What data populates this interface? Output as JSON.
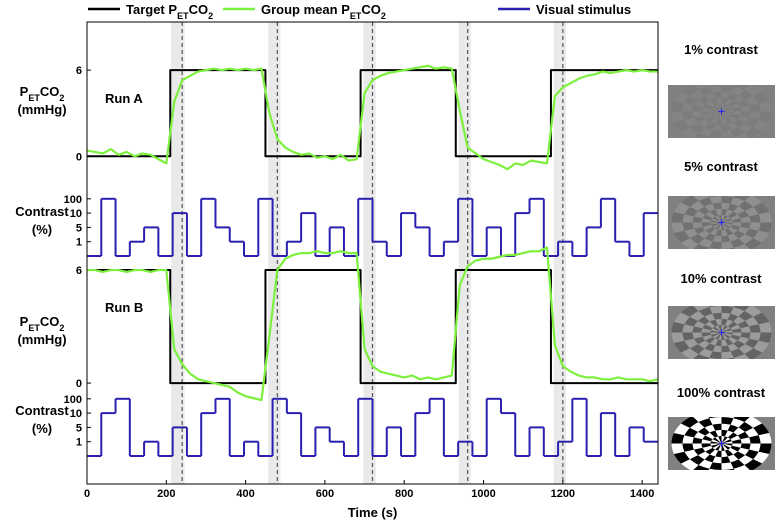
{
  "chart_data": [
    {
      "type": "line",
      "annotation": "Run A",
      "ylabel": [
        "PETCO2",
        "(mmHg)"
      ],
      "xlim": [
        0,
        1440
      ],
      "ylim": [
        -2,
        9.35
      ],
      "yticks": [
        0,
        6
      ],
      "series": [
        {
          "name": "Target PETCO2",
          "color": "#000000",
          "x": [
            0,
            210,
            210,
            450,
            450,
            690,
            690,
            930,
            930,
            1170,
            1170,
            1440
          ],
          "values": [
            0,
            0,
            6,
            6,
            0,
            0,
            6,
            6,
            0,
            0,
            6,
            6
          ]
        },
        {
          "name": "Group mean PETCO2",
          "color": "#7cf03c",
          "x": [
            0,
            20,
            40,
            60,
            80,
            100,
            120,
            140,
            160,
            180,
            200,
            220,
            240,
            260,
            280,
            300,
            320,
            340,
            360,
            380,
            400,
            420,
            440,
            460,
            480,
            500,
            520,
            540,
            560,
            580,
            600,
            620,
            640,
            660,
            680,
            700,
            720,
            740,
            760,
            780,
            800,
            820,
            840,
            860,
            880,
            900,
            920,
            940,
            960,
            980,
            1000,
            1020,
            1040,
            1060,
            1080,
            1100,
            1120,
            1140,
            1160,
            1180,
            1200,
            1220,
            1240,
            1260,
            1280,
            1300,
            1320,
            1340,
            1360,
            1380,
            1400,
            1420,
            1440
          ],
          "values": [
            0.4,
            0.3,
            0.2,
            0.5,
            0.1,
            0.3,
            0.0,
            0.2,
            0.1,
            -0.2,
            -0.5,
            3.8,
            5.3,
            5.6,
            5.9,
            6.0,
            6.1,
            6.0,
            6.1,
            6.0,
            6.1,
            6.0,
            6.1,
            3.0,
            1.2,
            0.6,
            0.3,
            0.1,
            0.2,
            -0.1,
            0.0,
            -0.2,
            0.1,
            -0.3,
            -0.2,
            4.4,
            5.3,
            5.6,
            5.8,
            5.9,
            6.0,
            6.1,
            6.2,
            6.3,
            6.1,
            6.2,
            6.1,
            3.2,
            0.6,
            0.2,
            -0.2,
            -0.4,
            -0.6,
            -0.9,
            -0.5,
            -0.6,
            -0.3,
            -0.4,
            -0.5,
            4.2,
            4.8,
            5.1,
            5.4,
            5.6,
            5.7,
            5.9,
            5.8,
            5.9,
            6.0,
            5.9,
            6.0,
            5.9,
            5.9
          ]
        }
      ]
    },
    {
      "type": "step",
      "ylabel": [
        "Contrast",
        "(%)"
      ],
      "yscale": "ordinal",
      "xlim": [
        0,
        1440
      ],
      "yticks": [
        1,
        5,
        10,
        100
      ],
      "series": [
        {
          "name": "Visual stimulus",
          "color": "#2a1fb0",
          "x": [
            0,
            36,
            72,
            108,
            144,
            180,
            216,
            252,
            288,
            324,
            360,
            396,
            432,
            468,
            504,
            540,
            576,
            612,
            648,
            684,
            720,
            756,
            792,
            828,
            864,
            900,
            936,
            972,
            1008,
            1044,
            1080,
            1116,
            1152,
            1188,
            1224,
            1260,
            1296,
            1332,
            1368,
            1404
          ],
          "values": [
            0,
            100,
            0,
            1,
            5,
            0,
            10,
            0,
            100,
            5,
            1,
            0,
            100,
            0,
            1,
            10,
            0,
            5,
            0,
            100,
            1,
            0,
            10,
            5,
            0,
            1,
            100,
            0,
            5,
            0,
            10,
            100,
            0,
            1,
            0,
            5,
            100,
            1,
            0,
            10
          ]
        }
      ]
    },
    {
      "type": "line",
      "annotation": "Run B",
      "ylabel": [
        "PETCO2",
        "(mmHg)"
      ],
      "xlim": [
        0,
        1440
      ],
      "ylim": [
        -1.43,
        7.33
      ],
      "yticks": [
        0,
        6
      ],
      "series": [
        {
          "name": "Target PETCO2",
          "color": "#000000",
          "x": [
            0,
            210,
            210,
            450,
            450,
            690,
            690,
            930,
            930,
            1170,
            1170,
            1440
          ],
          "values": [
            6,
            6,
            0,
            0,
            6,
            6,
            0,
            0,
            6,
            6,
            0,
            0
          ]
        },
        {
          "name": "Group mean PETCO2",
          "color": "#7cf03c",
          "x": [
            0,
            20,
            40,
            60,
            80,
            100,
            120,
            140,
            160,
            180,
            200,
            220,
            240,
            260,
            280,
            300,
            320,
            340,
            360,
            380,
            400,
            420,
            440,
            460,
            480,
            500,
            520,
            540,
            560,
            580,
            600,
            620,
            640,
            660,
            680,
            700,
            720,
            740,
            760,
            780,
            800,
            820,
            840,
            860,
            880,
            900,
            920,
            940,
            960,
            980,
            1000,
            1020,
            1040,
            1060,
            1080,
            1100,
            1120,
            1140,
            1160,
            1180,
            1200,
            1220,
            1240,
            1260,
            1280,
            1300,
            1320,
            1340,
            1360,
            1380,
            1400,
            1420,
            1440
          ],
          "values": [
            6.0,
            6.0,
            5.9,
            6.0,
            6.0,
            5.9,
            6.0,
            6.0,
            5.9,
            6.0,
            6.0,
            1.8,
            1.0,
            0.5,
            0.2,
            0.1,
            0.0,
            -0.1,
            -0.2,
            -0.5,
            -0.7,
            -0.8,
            -0.9,
            2.5,
            6.0,
            6.6,
            6.8,
            6.9,
            6.9,
            7.0,
            6.9,
            6.9,
            7.0,
            6.9,
            6.9,
            1.8,
            0.9,
            0.6,
            0.5,
            0.4,
            0.3,
            0.4,
            0.2,
            0.3,
            0.2,
            0.3,
            0.4,
            5.2,
            6.2,
            6.5,
            6.6,
            6.6,
            6.7,
            6.8,
            6.8,
            6.9,
            7.0,
            7.0,
            7.2,
            2.0,
            0.9,
            0.6,
            0.4,
            0.3,
            0.3,
            0.2,
            0.2,
            0.3,
            0.2,
            0.2,
            0.2,
            0.1,
            0.2
          ]
        }
      ]
    },
    {
      "type": "step",
      "ylabel": [
        "Contrast",
        "(%)"
      ],
      "yscale": "ordinal",
      "xlim": [
        0,
        1440
      ],
      "yticks": [
        1,
        5,
        10,
        100
      ],
      "xlabel": "Time (s)",
      "xticks": [
        0,
        200,
        400,
        600,
        800,
        1000,
        1200,
        1400
      ],
      "series": [
        {
          "name": "Visual stimulus",
          "color": "#2a1fb0",
          "x": [
            0,
            36,
            72,
            108,
            144,
            180,
            216,
            252,
            288,
            324,
            360,
            396,
            432,
            468,
            504,
            540,
            576,
            612,
            648,
            684,
            720,
            756,
            792,
            828,
            864,
            900,
            936,
            972,
            1008,
            1044,
            1080,
            1116,
            1152,
            1188,
            1224,
            1260,
            1296,
            1332,
            1368,
            1404
          ],
          "values": [
            0,
            10,
            100,
            0,
            1,
            0,
            5,
            0,
            10,
            100,
            0,
            1,
            0,
            100,
            10,
            0,
            5,
            1,
            0,
            100,
            0,
            5,
            0,
            10,
            100,
            0,
            1,
            0,
            100,
            10,
            0,
            5,
            0,
            1,
            100,
            0,
            10,
            0,
            5,
            1
          ]
        }
      ]
    }
  ],
  "event_times": [
    240,
    480,
    720,
    960,
    1200
  ],
  "shaded_windows": [
    [
      212,
      246
    ],
    [
      457,
      488
    ],
    [
      697,
      728
    ],
    [
      937,
      968
    ],
    [
      1177,
      1208
    ]
  ],
  "stimulus_images": [
    "1% contrast",
    "5% contrast",
    "10% contrast",
    "100% contrast"
  ]
}
